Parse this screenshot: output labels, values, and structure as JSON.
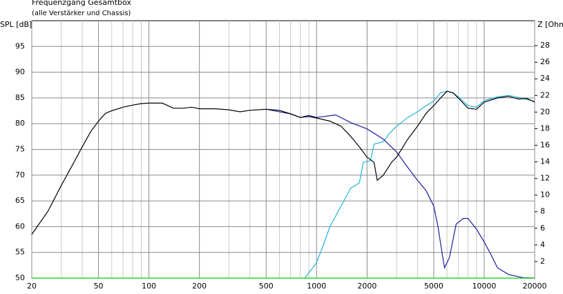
{
  "chart_data": {
    "type": "line",
    "title": "Frequenzgang Gesamtbox",
    "subtitle": "(alle Verstärker und Chassis)",
    "y_label": "SPL [dB]",
    "y2_label": "Z [Ohm",
    "log_x": true,
    "grid": true,
    "xlim": [
      20,
      20000
    ],
    "xticks": [
      20,
      50,
      100,
      200,
      500,
      1000,
      2000,
      5000,
      10000,
      20000
    ],
    "xminorticks": [
      30,
      40,
      60,
      70,
      80,
      90,
      300,
      400,
      600,
      700,
      800,
      900,
      3000,
      4000,
      6000,
      7000,
      8000,
      9000
    ],
    "ylim": [
      50,
      100
    ],
    "yticks": [
      50,
      55,
      60,
      65,
      70,
      75,
      80,
      85,
      90,
      95
    ],
    "y2lim": [
      0,
      31
    ],
    "y2ticks": [
      2,
      4,
      6,
      8,
      10,
      12,
      14,
      16,
      18,
      20,
      22,
      24,
      26,
      28
    ],
    "series": [
      {
        "color": "#1fb4d8",
        "x": [
          850,
          1000,
          1100,
          1200,
          1400,
          1600,
          1800,
          1900,
          2100,
          2200,
          2500,
          2700,
          3000,
          3500,
          4000,
          4500,
          5000,
          5500,
          6000,
          6500,
          7000,
          8000,
          9000,
          10000,
          12000,
          14000,
          17000,
          20000
        ],
        "values": [
          50,
          53,
          56.5,
          60,
          64,
          67.5,
          68.5,
          72.5,
          72.8,
          76,
          76.5,
          78,
          79.5,
          81.2,
          82.3,
          83.5,
          84.4,
          86,
          86.3,
          86,
          85.2,
          83.5,
          83.2,
          84.5,
          85.2,
          85.5,
          84.9,
          84.3
        ]
      },
      {
        "color": "#1a1a9a",
        "x": [
          500,
          700,
          800,
          900,
          1000,
          1300,
          1600,
          2000,
          2500,
          3000,
          3500,
          4000,
          4500,
          5000,
          5300,
          5600,
          5800,
          6200,
          6800,
          7500,
          8000,
          9000,
          10000,
          11000,
          12000,
          14000,
          17000,
          20000
        ],
        "values": [
          82.8,
          81.9,
          81.2,
          81.6,
          81.2,
          81.7,
          80.2,
          79,
          77,
          74.5,
          71.5,
          69,
          67,
          64,
          60,
          55,
          52,
          54,
          60.5,
          61.6,
          61.6,
          59.5,
          57,
          54.5,
          52,
          50.7,
          50.1,
          50
        ]
      },
      {
        "color": "#000000",
        "x": [
          20,
          25,
          30,
          35,
          40,
          45,
          50,
          55,
          60,
          70,
          80,
          90,
          100,
          120,
          140,
          160,
          180,
          200,
          250,
          300,
          350,
          400,
          500,
          600,
          700,
          800,
          900,
          1000,
          1200,
          1400,
          1600,
          1800,
          2000,
          2200,
          2300,
          2500,
          2800,
          3000,
          3500,
          4000,
          4500,
          5000,
          5500,
          6000,
          6500,
          7000,
          8000,
          9000,
          10000,
          12000,
          14000,
          16000,
          18000,
          20000
        ],
        "values": [
          58.5,
          63,
          68,
          72,
          75.5,
          78.5,
          80.5,
          82,
          82.5,
          83.2,
          83.6,
          83.9,
          84,
          84,
          83,
          83,
          83.2,
          82.9,
          82.9,
          82.7,
          82.3,
          82.6,
          82.8,
          82.6,
          81.9,
          81.2,
          81.4,
          81.1,
          80.5,
          79.5,
          77.5,
          75.5,
          73.5,
          72.5,
          69,
          70,
          72.5,
          73.5,
          77,
          79.5,
          82,
          83.5,
          85,
          86.3,
          86,
          85,
          83,
          82.8,
          84.2,
          85,
          85.3,
          84.8,
          84.9,
          84.2
        ]
      },
      {
        "color": "#00cc00",
        "x": [
          20,
          20000
        ],
        "values": [
          50,
          50
        ]
      }
    ]
  }
}
